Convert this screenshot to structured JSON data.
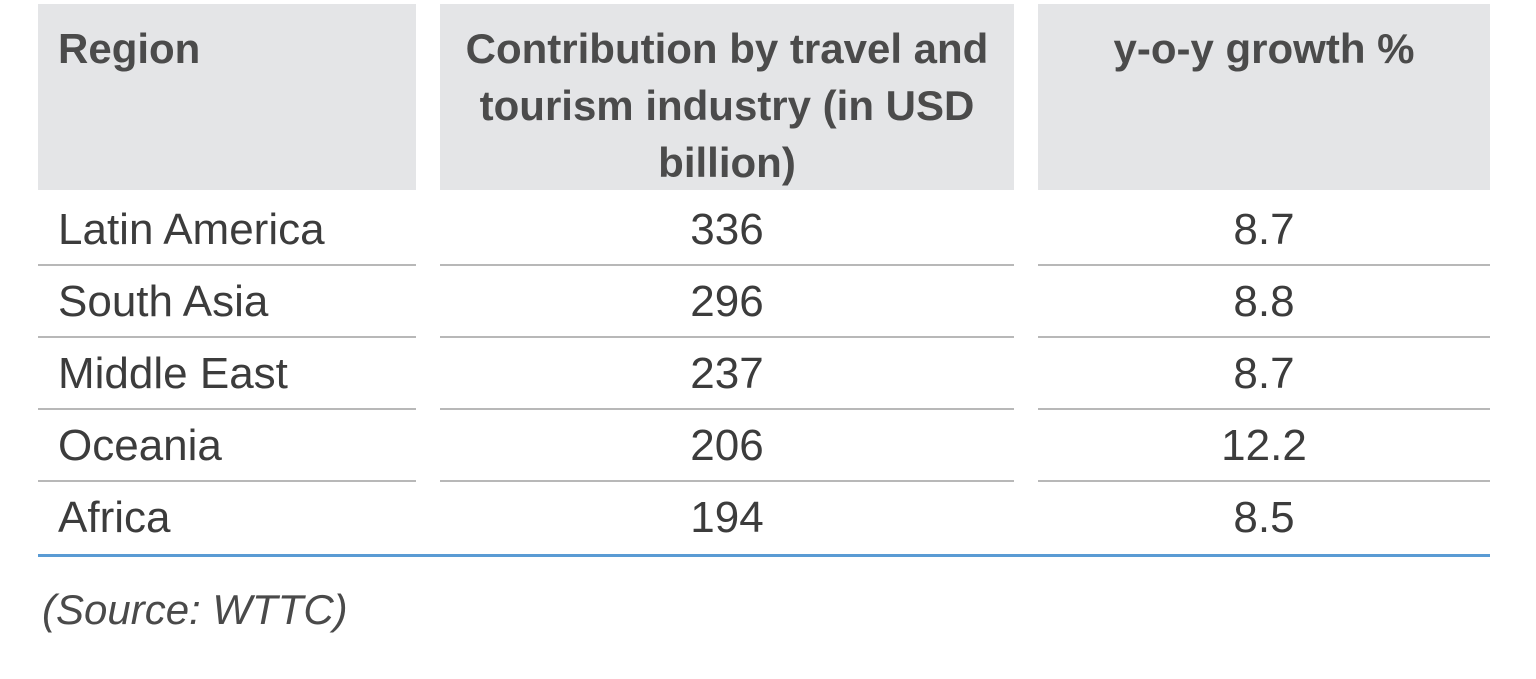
{
  "chart_data": {
    "type": "table",
    "columns": [
      "Region",
      "Contribution by travel and tourism industry (in USD billion)",
      "y-o-y growth %"
    ],
    "rows": [
      {
        "region": "Latin America",
        "contribution": "336",
        "growth": "8.7"
      },
      {
        "region": "South Asia",
        "contribution": "296",
        "growth": "8.8"
      },
      {
        "region": "Middle East",
        "contribution": "237",
        "growth": "8.7"
      },
      {
        "region": "Oceania",
        "contribution": "206",
        "growth": "12.2"
      },
      {
        "region": "Africa",
        "contribution": "194",
        "growth": "8.5"
      }
    ],
    "source": "(Source: WTTC)"
  },
  "colors": {
    "header_bg": "#e4e5e7",
    "row_divider": "#b8b8b8",
    "bottom_rule": "#5a9bd4"
  }
}
